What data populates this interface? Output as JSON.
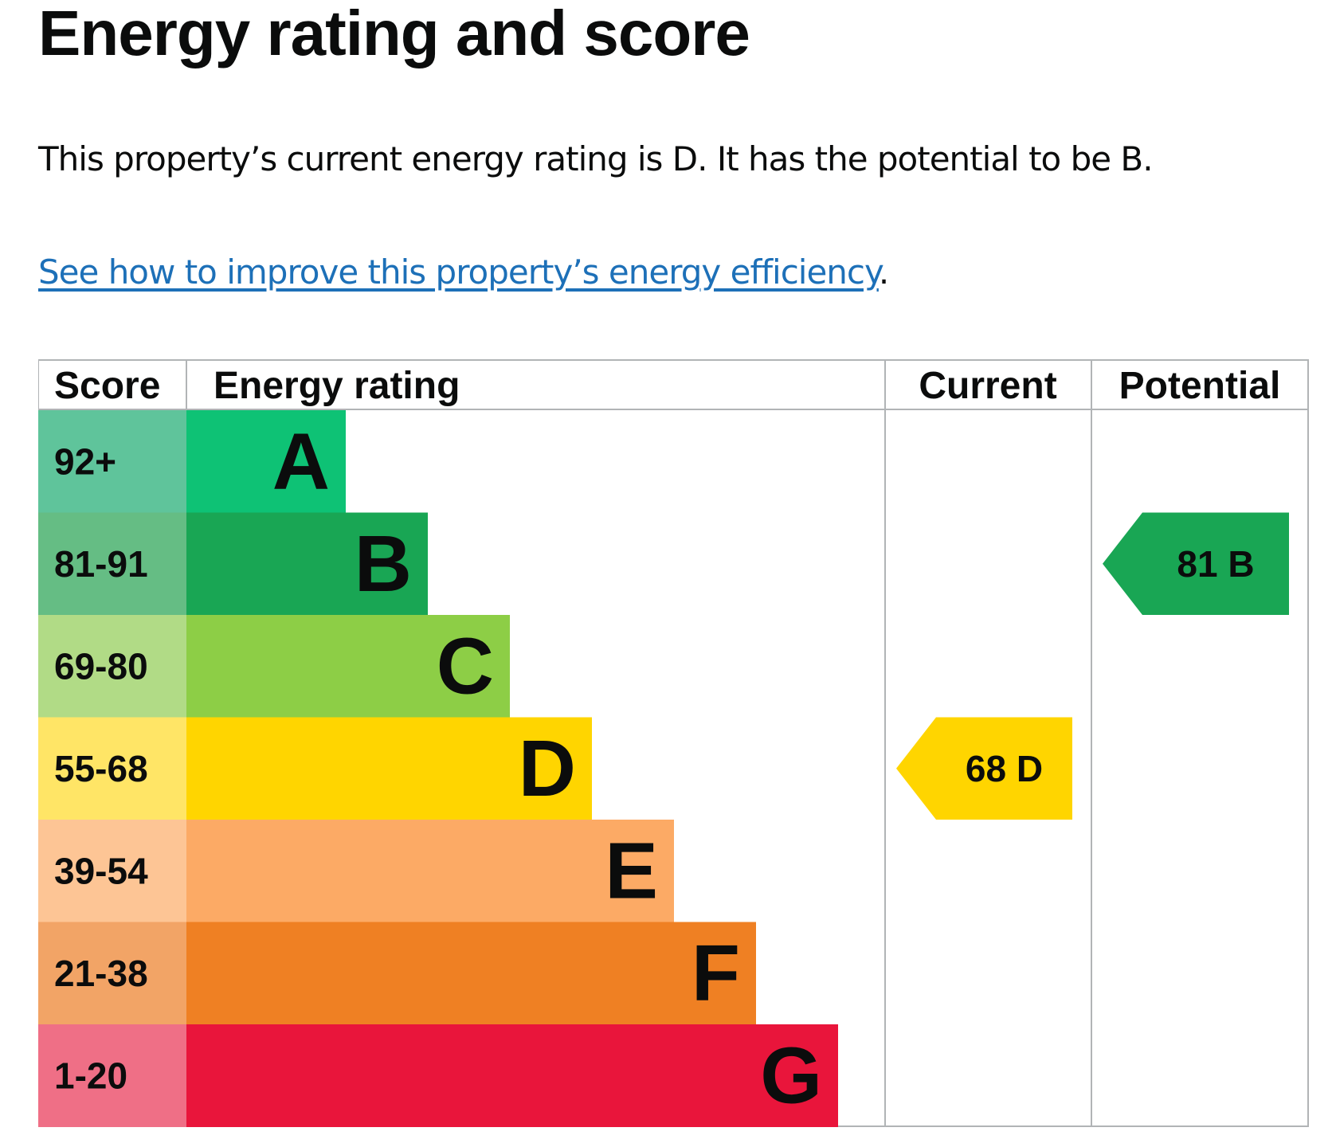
{
  "page": {
    "title": "Energy rating and score",
    "summary": "This property’s current energy rating is D. It has the potential to be B.",
    "improve_link": "See how to improve this property’s energy efficiency",
    "improve_suffix": "."
  },
  "chart_data": {
    "type": "table",
    "headers": {
      "score": "Score",
      "rating": "Energy rating",
      "current": "Current",
      "potential": "Potential"
    },
    "bands": [
      {
        "letter": "A",
        "range": "92+",
        "color": "#0ec275",
        "score_bg": "#5fc49b"
      },
      {
        "letter": "B",
        "range": "81-91",
        "color": "#19a654",
        "score_bg": "#65bd84"
      },
      {
        "letter": "C",
        "range": "69-80",
        "color": "#8dce46",
        "score_bg": "#b1db86"
      },
      {
        "letter": "D",
        "range": "55-68",
        "color": "#ffd500",
        "score_bg": "#ffe566"
      },
      {
        "letter": "E",
        "range": "39-54",
        "color": "#fcaa65",
        "score_bg": "#fdc595"
      },
      {
        "letter": "F",
        "range": "21-38",
        "color": "#ef8023",
        "score_bg": "#f2a466"
      },
      {
        "letter": "G",
        "range": "1-20",
        "color": "#e9153b",
        "score_bg": "#ef6f86"
      }
    ],
    "current": {
      "score": 68,
      "letter": "D",
      "label": "68  D",
      "color": "#ffd500"
    },
    "potential": {
      "score": 81,
      "letter": "B",
      "label": "81  B",
      "color": "#19a654"
    }
  }
}
